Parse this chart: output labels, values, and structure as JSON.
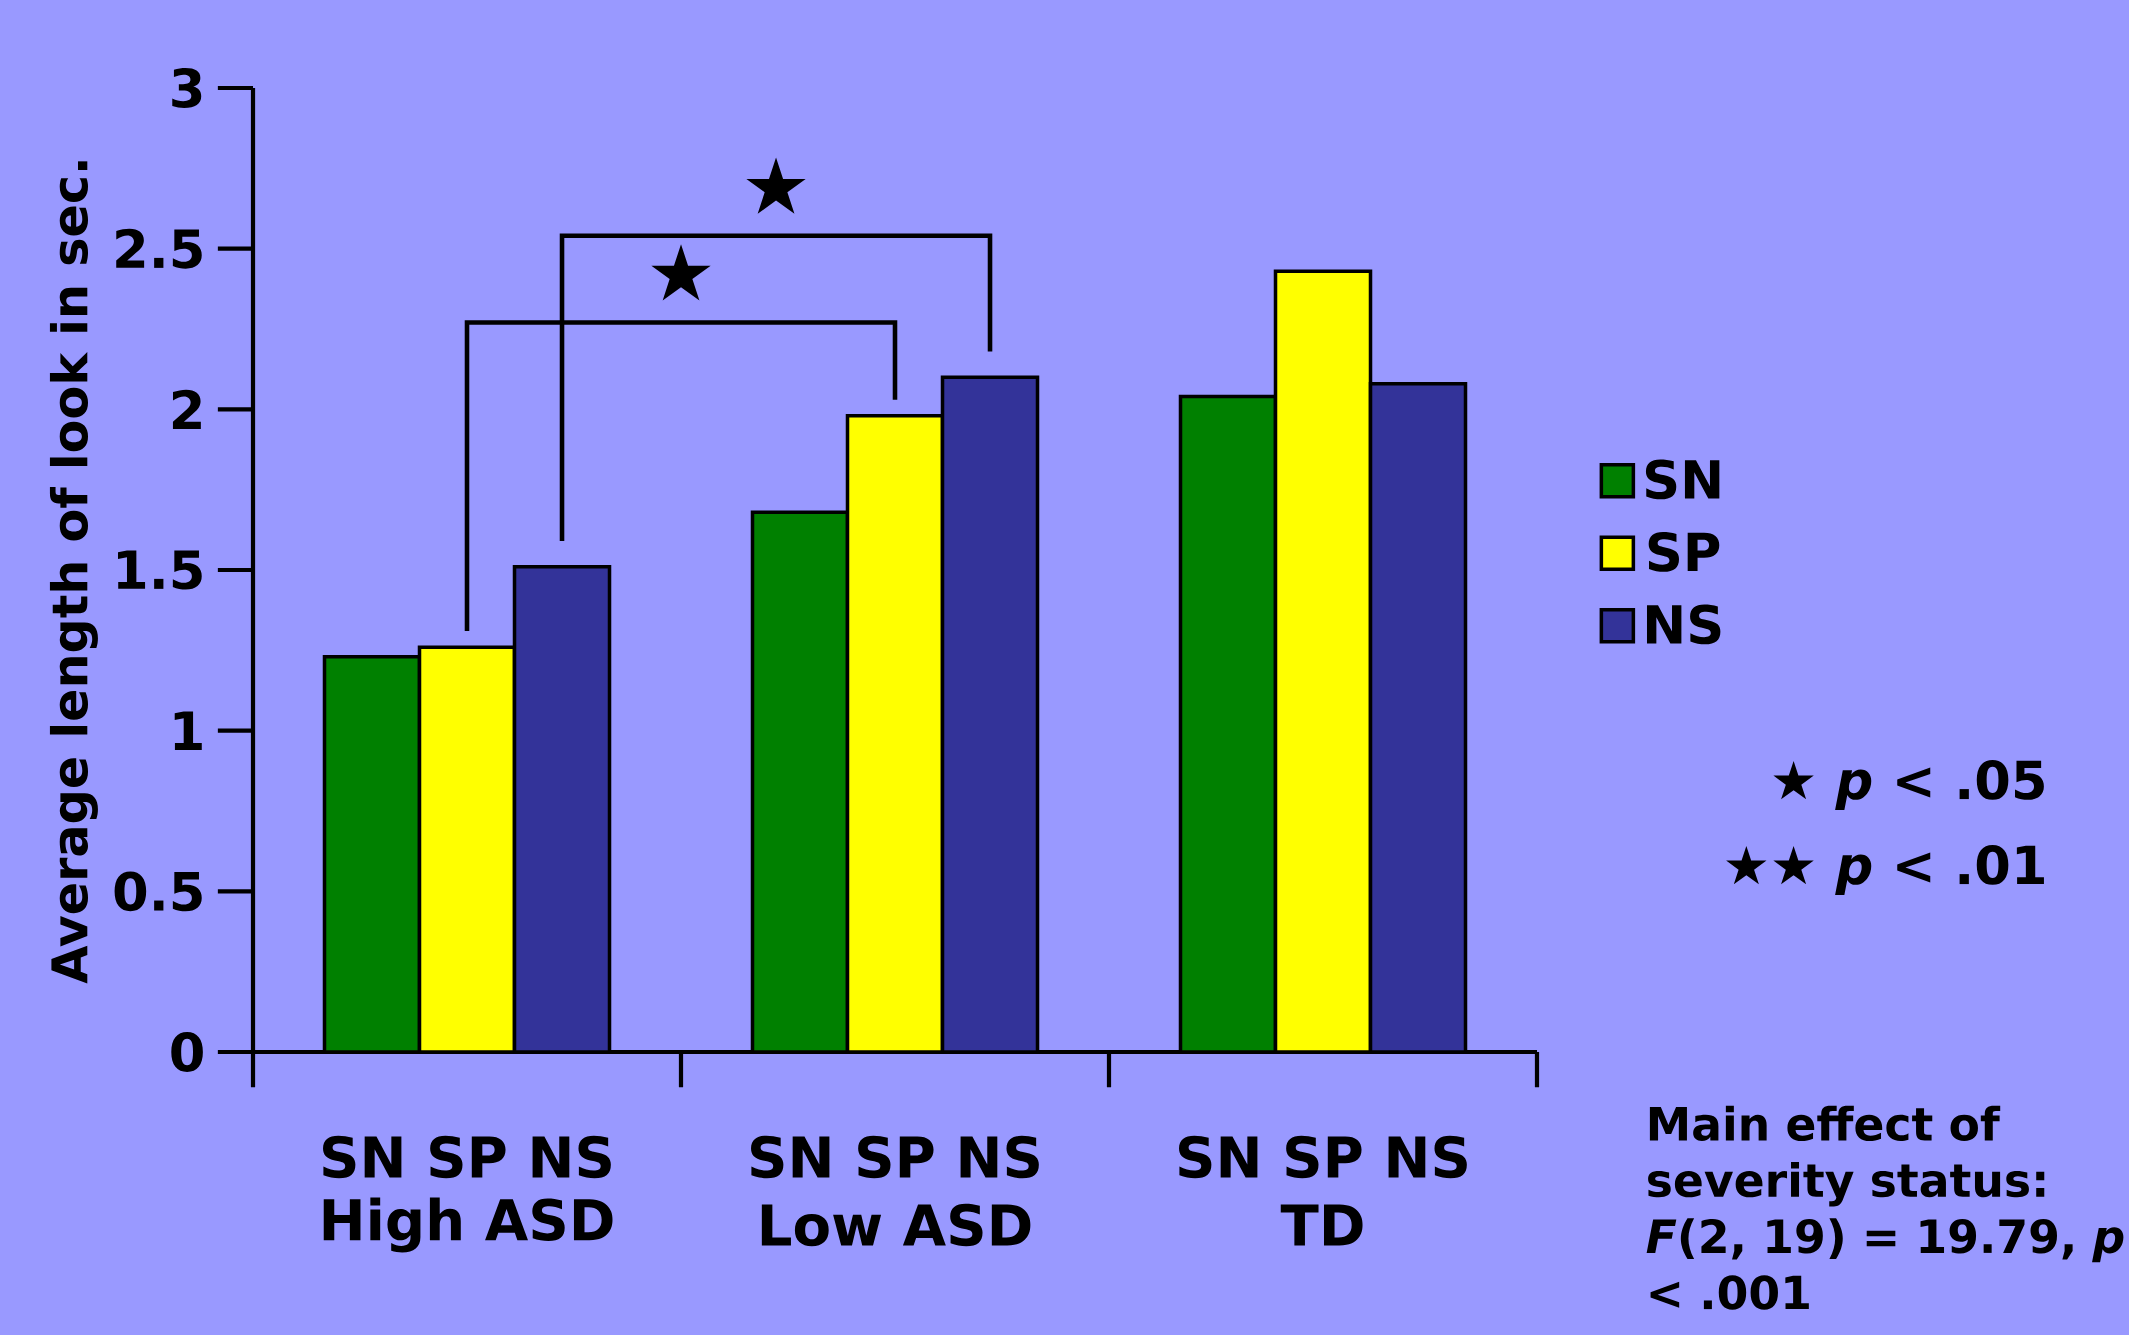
{
  "chart_data": {
    "type": "bar",
    "ylabel": "Average length of look in sec.",
    "categories": [
      "High ASD",
      "Low ASD",
      "TD"
    ],
    "series": [
      {
        "name": "SN",
        "color": "#008000",
        "values": [
          1.23,
          1.68,
          2.04
        ]
      },
      {
        "name": "SP",
        "color": "#ffff00",
        "values": [
          1.26,
          1.98,
          2.43
        ]
      },
      {
        "name": "NS",
        "color": "#333399",
        "values": [
          1.51,
          2.1,
          2.08
        ]
      }
    ],
    "ylim": [
      0,
      3
    ],
    "yticks": [
      0,
      0.5,
      1,
      1.5,
      2,
      2.5,
      3
    ],
    "legend": "right",
    "annotations": [
      "SN  SP  NS",
      "SN  SP  NS",
      "SN  SP  NS",
      "★",
      "★",
      "★ *p* < .05",
      "★★ *p* < .01",
      "Main effect of severity status: *F*(2, 19) = 19.79, *p* < .001"
    ]
  }
}
